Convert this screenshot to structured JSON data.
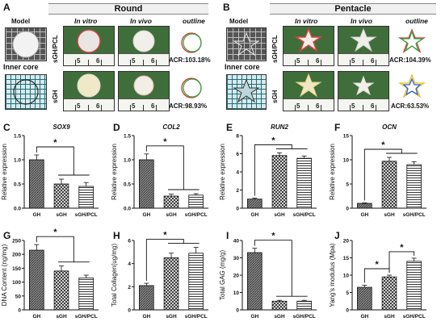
{
  "panelA": {
    "letter": "A",
    "header": "Round",
    "model_label": "Model",
    "inner_core_label": "Inner core",
    "invitro_label": "In vitro",
    "invivo_label": "In vivo",
    "outline_label": "outline",
    "row1_label": "sGH/PCL",
    "row2_label": "sGH",
    "acr1": "ACR:103.18%",
    "acr2": "ACR:98.93%",
    "ruler_5": "5",
    "ruler_6": "6"
  },
  "panelB": {
    "letter": "B",
    "header": "Pentacle",
    "model_label": "Model",
    "inner_core_label": "Inner core",
    "invitro_label": "In vitro",
    "invivo_label": "In vivo",
    "outline_label": "outline",
    "row1_label": "sGH/PCL",
    "row2_label": "sGH",
    "acr1": "ACR:104.39%",
    "acr2": "ACR:63.53%"
  },
  "chart_data": [
    {
      "id": "C",
      "letter": "C",
      "type": "bar",
      "title": "SOX9",
      "ylabel": "Relative expression",
      "categories": [
        "GH",
        "sGH",
        "sGH/PCL"
      ],
      "values": [
        1.0,
        0.5,
        0.45
      ],
      "errors": [
        0.1,
        0.1,
        0.08
      ],
      "ylim": [
        0,
        1.5
      ],
      "yticks": [
        "0.0",
        "0.5",
        "1.0",
        "1.5"
      ],
      "sig": "*"
    },
    {
      "id": "D",
      "letter": "D",
      "type": "bar",
      "title": "COL2",
      "ylabel": "Relative expression",
      "categories": [
        "GH",
        "sGH",
        "sGH/PCL"
      ],
      "values": [
        1.0,
        0.25,
        0.27
      ],
      "errors": [
        0.12,
        0.04,
        0.03
      ],
      "ylim": [
        0,
        1.5
      ],
      "yticks": [
        "0.0",
        "0.5",
        "1.0",
        "1.5"
      ],
      "sig": "*"
    },
    {
      "id": "E",
      "letter": "E",
      "type": "bar",
      "title": "RUN2",
      "ylabel": "Relative expression",
      "categories": [
        "GH",
        "sGH",
        "sGH/PCL"
      ],
      "values": [
        1.0,
        5.8,
        5.5
      ],
      "errors": [
        0.1,
        0.3,
        0.25
      ],
      "ylim": [
        0,
        8
      ],
      "yticks": [
        "0",
        "2",
        "4",
        "6",
        "8"
      ],
      "sig": "*"
    },
    {
      "id": "F",
      "letter": "F",
      "type": "bar",
      "title": "OCN",
      "ylabel": "Relative expression",
      "categories": [
        "GH",
        "sGH",
        "sGH/PCL"
      ],
      "values": [
        1.0,
        9.7,
        9.0
      ],
      "errors": [
        0.1,
        0.8,
        0.6
      ],
      "ylim": [
        0,
        15
      ],
      "yticks": [
        "0",
        "5",
        "10",
        "15"
      ],
      "sig": "*"
    },
    {
      "id": "G",
      "letter": "G",
      "type": "bar",
      "title": "",
      "ylabel": "DNA Content (ng/mg)",
      "categories": [
        "GH",
        "sGH",
        "sGH/PCL"
      ],
      "values": [
        215,
        140,
        115
      ],
      "errors": [
        20,
        18,
        10
      ],
      "ylim": [
        0,
        250
      ],
      "yticks": [
        "0",
        "50",
        "100",
        "150",
        "200",
        "250"
      ],
      "sig": "*"
    },
    {
      "id": "H",
      "letter": "H",
      "type": "bar",
      "title": "",
      "ylabel": "Total Collagen(ug/mg)",
      "categories": [
        "GH",
        "sGH",
        "sGH/PCL"
      ],
      "values": [
        2.1,
        4.5,
        4.9
      ],
      "errors": [
        0.2,
        0.4,
        0.5
      ],
      "ylim": [
        0,
        6
      ],
      "yticks": [
        "0",
        "2",
        "4",
        "6"
      ],
      "sig": "*"
    },
    {
      "id": "I",
      "letter": "I",
      "type": "bar",
      "title": "",
      "ylabel": "Total GAG (mg/g)",
      "categories": [
        "GH",
        "sGH",
        "sGH/PCL"
      ],
      "values": [
        33,
        5,
        5
      ],
      "errors": [
        2.5,
        0.5,
        0.5
      ],
      "ylim": [
        0,
        40
      ],
      "yticks": [
        "0",
        "10",
        "20",
        "30",
        "40"
      ],
      "sig": "*"
    },
    {
      "id": "J",
      "letter": "J",
      "type": "bar",
      "title": "",
      "ylabel": "Yang's modulus (Mpa)",
      "categories": [
        "GH",
        "sGH",
        "sGH/PCL"
      ],
      "values": [
        6.5,
        9.5,
        14
      ],
      "errors": [
        0.6,
        0.5,
        0.9
      ],
      "ylim": [
        0,
        20
      ],
      "yticks": [
        "0",
        "5",
        "10",
        "15",
        "20"
      ],
      "sig": "*"
    }
  ]
}
